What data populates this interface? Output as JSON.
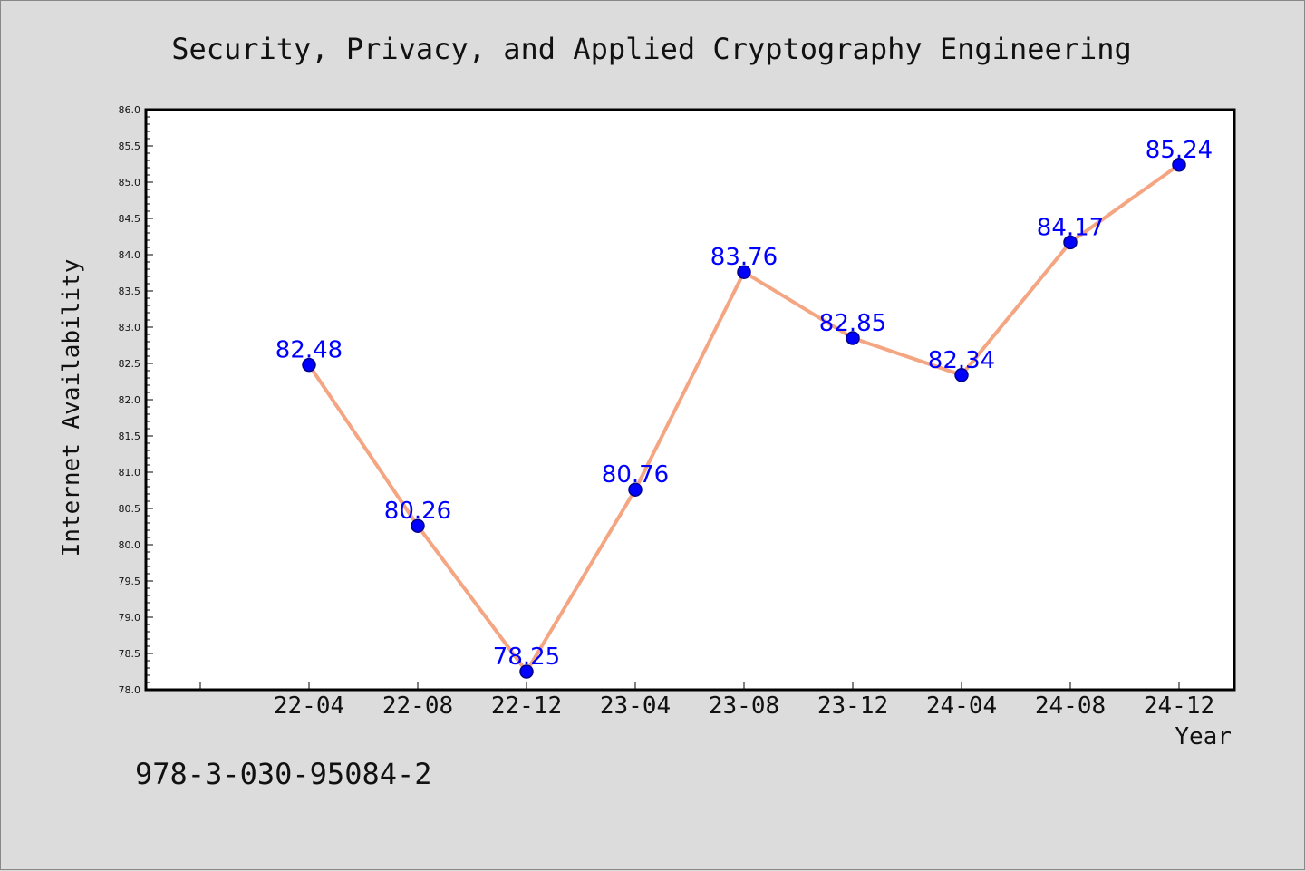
{
  "chart_data": {
    "type": "line",
    "title": "Security, Privacy, and Applied Cryptography Engineering",
    "xlabel": "Year",
    "ylabel": "Internet Availability",
    "categories": [
      "22-04",
      "22-08",
      "22-12",
      "23-04",
      "23-08",
      "23-12",
      "24-04",
      "24-08",
      "24-12"
    ],
    "series": [
      {
        "values": [
          82.48,
          80.26,
          78.25,
          80.76,
          83.76,
          82.85,
          82.34,
          84.17,
          85.24
        ],
        "data_labels": [
          "82.48",
          "80.26",
          "78.25",
          "80.76",
          "83.76",
          "82.85",
          "82.34",
          "84.17",
          "85.24"
        ]
      }
    ],
    "ylim": [
      78.0,
      86.0
    ],
    "y_ticks": [
      "78.0",
      "78.5",
      "79.0",
      "79.5",
      "80.0",
      "80.5",
      "81.0",
      "81.5",
      "82.0",
      "82.5",
      "83.0",
      "83.5",
      "84.0",
      "84.5",
      "85.0",
      "85.5",
      "86.0"
    ],
    "grid": false,
    "colors": {
      "line": "#f4a582",
      "marker": "#0000ff",
      "data_label": "#0000ff",
      "plot_background": "#ffffff",
      "page_background": "#dcdcdc"
    }
  },
  "footnote": "978-3-030-95084-2"
}
